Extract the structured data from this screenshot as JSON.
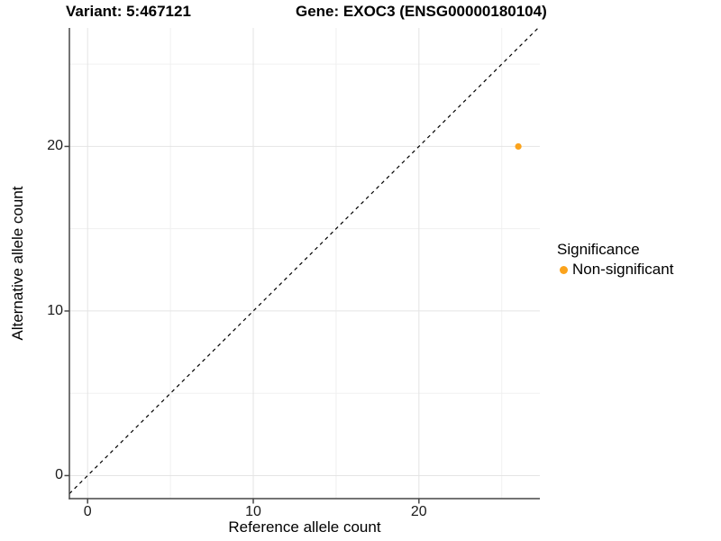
{
  "chart_data": {
    "type": "scatter",
    "title_left": "Variant: 5:467121",
    "title_right": "Gene: EXOC3 (ENSG00000180104)",
    "xlabel": "Reference allele count",
    "ylabel": "Alternative allele count",
    "xlim": [
      -1.1,
      27.3
    ],
    "ylim": [
      -1.4,
      27.2
    ],
    "x_major_ticks": [
      0,
      10,
      20
    ],
    "y_major_ticks": [
      0,
      10,
      20
    ],
    "x_minor_ticks": [
      5,
      15,
      25
    ],
    "y_minor_ticks": [
      5,
      15,
      25
    ],
    "grid": true,
    "identity_line": {
      "style": "dashed",
      "slope": 1,
      "intercept": 0,
      "color": "#000000"
    },
    "series": [
      {
        "name": "Non-significant",
        "color": "#FBA31C",
        "points": [
          {
            "x": 26,
            "y": 20
          }
        ]
      }
    ],
    "legend": {
      "title": "Significance",
      "position": "right",
      "items": [
        {
          "label": "Non-significant",
          "color": "#FBA31C"
        }
      ]
    },
    "colors": {
      "grid_major": "#E4E4E4",
      "grid_minor": "#F0F0F0",
      "axis_line": "#474747",
      "tick_text": "#1A1A1A",
      "background": "#FFFFFF"
    }
  }
}
